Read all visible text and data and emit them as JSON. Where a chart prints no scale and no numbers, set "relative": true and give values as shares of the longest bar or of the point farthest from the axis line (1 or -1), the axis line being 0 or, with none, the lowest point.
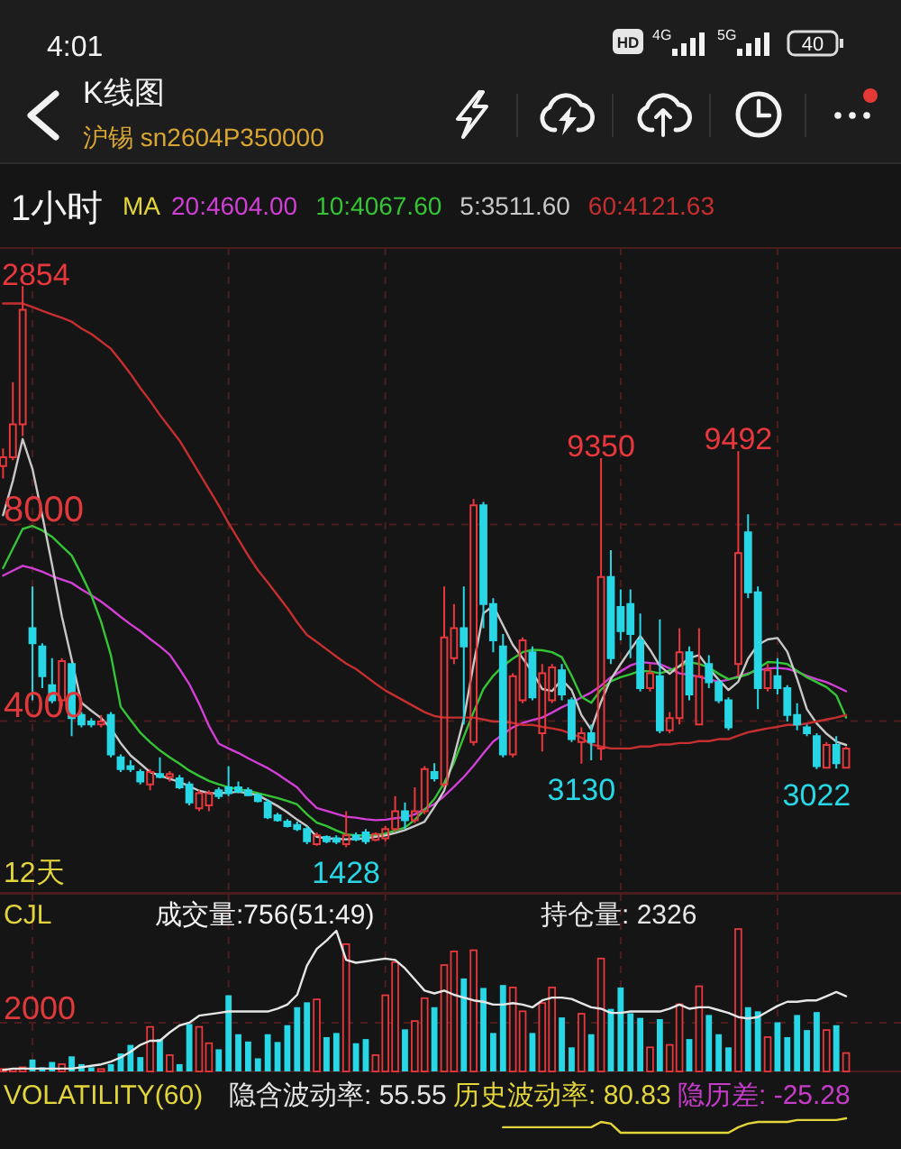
{
  "chart_data": [
    {
      "type": "candlestick",
      "title": "K线图",
      "subtitle": "沪锡 sn2604P350000",
      "legend_title": "MA",
      "legend": "top left",
      "categories": [
        null,
        null,
        null,
        null,
        null,
        null,
        null,
        null,
        null,
        null,
        null,
        null,
        null,
        null,
        null,
        null,
        null,
        null,
        null,
        null,
        null,
        null,
        null,
        null,
        null,
        null,
        null,
        null,
        null,
        null,
        null,
        null,
        null,
        null,
        null,
        null,
        null,
        null,
        null,
        null,
        null,
        null,
        null,
        null,
        null,
        null,
        null,
        null,
        null,
        null,
        null,
        null,
        null,
        null,
        null,
        null,
        null,
        null,
        null,
        null,
        null,
        null,
        null,
        null,
        null,
        null,
        null,
        null,
        null,
        null,
        null,
        null,
        null,
        null,
        null,
        null,
        null,
        null,
        null,
        null,
        null,
        null,
        null,
        null,
        null,
        null,
        null
      ],
      "ohlc": [
        [
          9190,
          9550,
          8940,
          9370
        ],
        [
          9370,
          10900,
          9310,
          10040
        ],
        [
          10040,
          12854,
          9800,
          12370
        ],
        [
          5890,
          6740,
          4420,
          5580
        ],
        [
          5520,
          5580,
          4670,
          4910
        ],
        [
          4730,
          5280,
          4360,
          4420
        ],
        [
          4420,
          5280,
          4300,
          5220
        ],
        [
          5160,
          5160,
          3690,
          4060
        ],
        [
          4120,
          4180,
          3870,
          3930
        ],
        [
          3990,
          4060,
          3870,
          3930
        ],
        [
          3930,
          4120,
          3870,
          3990
        ],
        [
          4120,
          4180,
          3260,
          3320
        ],
        [
          3260,
          3320,
          2960,
          3020
        ],
        [
          3080,
          3200,
          2960,
          3020
        ],
        [
          2960,
          3020,
          2710,
          2770
        ],
        [
          2710,
          3020,
          2590,
          2960
        ],
        [
          2920,
          3260,
          2830,
          2860
        ],
        [
          2860,
          2980,
          2770,
          2920
        ],
        [
          2830,
          2900,
          2610,
          2650
        ],
        [
          2710,
          2770,
          2280,
          2340
        ],
        [
          2220,
          2590,
          2160,
          2530
        ],
        [
          2280,
          2590,
          2160,
          2530
        ],
        [
          2590,
          2650,
          2410,
          2470
        ],
        [
          2650,
          3080,
          2470,
          2530
        ],
        [
          2650,
          2770,
          2530,
          2560
        ],
        [
          2590,
          2650,
          2470,
          2490
        ],
        [
          2490,
          2530,
          2340,
          2370
        ],
        [
          2340,
          2410,
          2000,
          2040
        ],
        [
          2080,
          2130,
          1950,
          1980
        ],
        [
          1950,
          2000,
          1830,
          1860
        ],
        [
          1880,
          1950,
          1760,
          1800
        ],
        [
          1800,
          1860,
          1490,
          1550
        ],
        [
          1490,
          1730,
          1460,
          1670
        ],
        [
          1640,
          1670,
          1510,
          1550
        ],
        [
          1610,
          1670,
          1490,
          1540
        ],
        [
          1490,
          2160,
          1428,
          1670
        ],
        [
          1670,
          1730,
          1550,
          1590
        ],
        [
          1730,
          1800,
          1490,
          1550
        ],
        [
          1580,
          1730,
          1550,
          1700
        ],
        [
          1610,
          1860,
          1550,
          1800
        ],
        [
          1800,
          2470,
          1760,
          2160
        ],
        [
          2160,
          2340,
          1800,
          1980
        ],
        [
          1980,
          2650,
          1920,
          2160
        ],
        [
          2160,
          3080,
          2100,
          3020
        ],
        [
          2960,
          3140,
          2770,
          2830
        ],
        [
          2710,
          6740,
          2650,
          5700
        ],
        [
          5280,
          6380,
          5160,
          5890
        ],
        [
          5890,
          6740,
          3930,
          5520
        ],
        [
          3570,
          8520,
          3500,
          8390
        ],
        [
          8390,
          8460,
          5890,
          6380
        ],
        [
          6380,
          6500,
          5400,
          5640
        ],
        [
          5520,
          5770,
          3260,
          3320
        ],
        [
          3320,
          4970,
          3260,
          4910
        ],
        [
          4420,
          5700,
          4360,
          5640
        ],
        [
          5400,
          5520,
          4420,
          4480
        ],
        [
          3750,
          5160,
          3380,
          4970
        ],
        [
          4420,
          5160,
          4360,
          5090
        ],
        [
          5030,
          5160,
          4420,
          4540
        ],
        [
          4420,
          4480,
          3570,
          3630
        ],
        [
          3570,
          3870,
          3130,
          3750
        ],
        [
          3750,
          3930,
          3200,
          3570
        ],
        [
          3440,
          9350,
          3200,
          6930
        ],
        [
          6930,
          7480,
          5160,
          5280
        ],
        [
          6320,
          6680,
          5640,
          5830
        ],
        [
          6380,
          6680,
          5280,
          5770
        ],
        [
          5640,
          6190,
          4600,
          4670
        ],
        [
          4670,
          5160,
          4600,
          4970
        ],
        [
          4910,
          6070,
          3750,
          3810
        ],
        [
          3810,
          4180,
          3750,
          4060
        ],
        [
          4060,
          5890,
          3930,
          5400
        ],
        [
          5400,
          5520,
          4420,
          4540
        ],
        [
          3930,
          5890,
          3930,
          4910
        ],
        [
          5160,
          5340,
          4670,
          4790
        ],
        [
          4790,
          4850,
          4360,
          4420
        ],
        [
          4420,
          4480,
          3810,
          3870
        ],
        [
          5160,
          9492,
          4910,
          7420
        ],
        [
          7840,
          8210,
          6500,
          6620
        ],
        [
          6620,
          6740,
          4240,
          4670
        ],
        [
          4670,
          5160,
          4600,
          5030
        ],
        [
          4910,
          5280,
          4540,
          4670
        ],
        [
          4670,
          4730,
          3990,
          4120
        ],
        [
          4120,
          4360,
          3810,
          3930
        ],
        [
          3870,
          3930,
          3690,
          3750
        ],
        [
          3690,
          3750,
          3022,
          3080
        ],
        [
          3050,
          3570,
          3030,
          3510
        ],
        [
          3510,
          3690,
          3030,
          3140
        ],
        [
          3050,
          3480,
          3030,
          3440
        ]
      ],
      "colors": [
        "#e8383d",
        "#e8383d",
        "#e8383d",
        "#28d7e6",
        "#28d7e6",
        "#28d7e6",
        "#e8383d",
        "#28d7e6",
        "#28d7e6",
        "#28d7e6",
        "#e8383d",
        "#28d7e6",
        "#28d7e6",
        "#28d7e6",
        "#28d7e6",
        "#e8383d",
        "#28d7e6",
        "#e8383d",
        "#28d7e6",
        "#28d7e6",
        "#e8383d",
        "#e8383d",
        "#28d7e6",
        "#28d7e6",
        "#28d7e6",
        "#28d7e6",
        "#28d7e6",
        "#28d7e6",
        "#28d7e6",
        "#28d7e6",
        "#28d7e6",
        "#28d7e6",
        "#e8383d",
        "#28d7e6",
        "#28d7e6",
        "#e8383d",
        "#28d7e6",
        "#28d7e6",
        "#e8383d",
        "#e8383d",
        "#e8383d",
        "#28d7e6",
        "#e8383d",
        "#e8383d",
        "#28d7e6",
        "#e8383d",
        "#e8383d",
        "#28d7e6",
        "#e8383d",
        "#28d7e6",
        "#28d7e6",
        "#28d7e6",
        "#e8383d",
        "#e8383d",
        "#28d7e6",
        "#e8383d",
        "#e8383d",
        "#28d7e6",
        "#28d7e6",
        "#e8383d",
        "#28d7e6",
        "#e8383d",
        "#28d7e6",
        "#28d7e6",
        "#28d7e6",
        "#28d7e6",
        "#e8383d",
        "#28d7e6",
        "#e8383d",
        "#e8383d",
        "#28d7e6",
        "#e8383d",
        "#28d7e6",
        "#28d7e6",
        "#28d7e6",
        "#e8383d",
        "#28d7e6",
        "#28d7e6",
        "#e8383d",
        "#28d7e6",
        "#28d7e6",
        "#28d7e6",
        "#28d7e6",
        "#28d7e6",
        "#e8383d",
        "#28d7e6",
        "#e8383d"
      ],
      "series": [
        {
          "type": "line",
          "name": "20:4604.00",
          "color": "#d23fd6",
          "values": [
            6960,
            7060,
            7160,
            7110,
            7040,
            6950,
            6880,
            6810,
            6680,
            6560,
            6430,
            6280,
            6120,
            5970,
            5830,
            5670,
            5520,
            5350,
            5060,
            4750,
            4350,
            3900,
            3540,
            3440,
            3350,
            3240,
            3140,
            3040,
            2920,
            2780,
            2650,
            2420,
            2230,
            2170,
            2110,
            2050,
            2030,
            2000,
            1980,
            1990,
            2020,
            2040,
            2100,
            2200,
            2310,
            2470,
            2660,
            2860,
            3090,
            3340,
            3580,
            3730,
            3870,
            3960,
            4020,
            4070,
            4170,
            4280,
            4370,
            4480,
            4580,
            4720,
            4890,
            5010,
            5130,
            5200,
            5180,
            5160,
            5070,
            4970,
            4940,
            4900,
            4850,
            4800,
            4840,
            4910,
            4970,
            5030,
            5070,
            5080,
            5060,
            5000,
            4920,
            4850,
            4790,
            4700,
            4604
          ]
        },
        {
          "type": "line",
          "name": "10:4067.60",
          "color": "#35c435",
          "values": [
            7110,
            7510,
            7910,
            7970,
            7880,
            7750,
            7560,
            7370,
            6980,
            6560,
            6020,
            5340,
            4290,
            4020,
            3760,
            3570,
            3400,
            3260,
            3130,
            2990,
            2880,
            2780,
            2710,
            2650,
            2610,
            2580,
            2530,
            2480,
            2430,
            2370,
            2300,
            2100,
            1930,
            1860,
            1770,
            1690,
            1670,
            1670,
            1670,
            1710,
            1770,
            1830,
            1990,
            2190,
            2410,
            2740,
            3150,
            3680,
            4180,
            4650,
            4920,
            5120,
            5270,
            5400,
            5450,
            5440,
            5400,
            5300,
            4920,
            4490,
            4370,
            4640,
            4810,
            4890,
            4950,
            5020,
            5010,
            4970,
            5030,
            5110,
            5200,
            5160,
            5090,
            4960,
            4850,
            4890,
            4950,
            5070,
            5200,
            5190,
            5160,
            5020,
            4890,
            4790,
            4690,
            4520,
            4067.6
          ]
        },
        {
          "type": "line",
          "name": "5:3511.60",
          "color": "#c8c8c8",
          "values": [
            8190,
            8890,
            9740,
            9130,
            8190,
            7180,
            6130,
            5250,
            4370,
            4210,
            4060,
            3850,
            3550,
            3300,
            3130,
            2960,
            2890,
            2820,
            2760,
            2670,
            2580,
            2530,
            2530,
            2540,
            2560,
            2530,
            2490,
            2380,
            2270,
            2140,
            1990,
            1860,
            1640,
            1610,
            1600,
            1590,
            1600,
            1610,
            1640,
            1670,
            1720,
            1780,
            1860,
            1950,
            2250,
            2580,
            3270,
            4040,
            5160,
            6190,
            6350,
            5950,
            5550,
            5280,
            5000,
            4650,
            4610,
            4840,
            4630,
            4120,
            3820,
            4390,
            4850,
            5160,
            5450,
            5730,
            5450,
            5120,
            4960,
            5120,
            5280,
            5340,
            5070,
            4840,
            4630,
            4800,
            5270,
            5550,
            5660,
            5690,
            5410,
            4860,
            4240,
            3950,
            3740,
            3580,
            3511.6
          ]
        },
        {
          "type": "line",
          "name": "60:4121.63",
          "color": "#c62f2f",
          "values": [
            12500,
            12500,
            12500,
            12430,
            12350,
            12280,
            12210,
            12130,
            11990,
            11880,
            11730,
            11580,
            11330,
            11070,
            10780,
            10520,
            10230,
            9970,
            9710,
            9380,
            9050,
            8720,
            8390,
            8030,
            7700,
            7370,
            7070,
            6820,
            6560,
            6300,
            6010,
            5750,
            5610,
            5460,
            5310,
            5170,
            5060,
            4910,
            4760,
            4620,
            4510,
            4400,
            4290,
            4180,
            4100,
            4070,
            4070,
            4070,
            4070,
            4030,
            3990,
            3990,
            3960,
            3920,
            3920,
            3880,
            3850,
            3810,
            3740,
            3660,
            3520,
            3480,
            3440,
            3440,
            3440,
            3480,
            3480,
            3520,
            3520,
            3550,
            3550,
            3590,
            3590,
            3630,
            3630,
            3700,
            3770,
            3810,
            3850,
            3880,
            3920,
            3920,
            3950,
            3990,
            4030,
            4070,
            4121.63
          ]
        }
      ],
      "ylim": [
        500,
        13630
      ],
      "yticks": [
        4000,
        8000
      ],
      "grid": true,
      "tick_labels": "y",
      "annotations": [
        "4:01",
        "HD",
        "4G",
        "5G",
        "40",
        "1小时",
        "12天",
        "2854",
        {
          "text": "9350",
          "y": 9350
        },
        {
          "text": "9492",
          "y": 9492
        },
        {
          "text": "1428",
          "y": 1428
        },
        {
          "text": "3130",
          "y": 3130
        },
        {
          "text": "3022",
          "y": 3022
        }
      ]
    },
    {
      "type": "bar",
      "title": "CJL",
      "categories": [
        null,
        null,
        null,
        null,
        null,
        null,
        null,
        null,
        null,
        null,
        null,
        null,
        null,
        null,
        null,
        null,
        null,
        null,
        null,
        null,
        null,
        null,
        null,
        null,
        null,
        null,
        null,
        null,
        null,
        null,
        null,
        null,
        null,
        null,
        null,
        null,
        null,
        null,
        null,
        null,
        null,
        null,
        null,
        null,
        null,
        null,
        null,
        null,
        null,
        null,
        null,
        null,
        null,
        null,
        null,
        null,
        null,
        null,
        null,
        null,
        null,
        null,
        null,
        null,
        null,
        null,
        null,
        null,
        null,
        null,
        null,
        null,
        null,
        null,
        null,
        null,
        null,
        null,
        null,
        null,
        null,
        null,
        null,
        null,
        null,
        null,
        null
      ],
      "series": [
        {
          "values": [
            100,
            100,
            170,
            490,
            170,
            390,
            300,
            620,
            300,
            170,
            100,
            300,
            740,
            1090,
            590,
            1830,
            1330,
            670,
            300,
            1950,
            1830,
            1160,
            910,
            3130,
            1530,
            1230,
            540,
            1530,
            1210,
            1900,
            2640,
            2840,
            2960,
            1410,
            1580,
            5230,
            1160,
            1330,
            670,
            3130,
            4490,
            1730,
            2070,
            3010,
            2640,
            4370,
            4930,
            3820,
            4980,
            3430,
            1580,
            3550,
            3450,
            2470,
            1580,
            2810,
            3450,
            2220,
            990,
            2370,
            1530,
            4640,
            2570,
            3450,
            2390,
            2200,
            990,
            2150,
            1090,
            2760,
            1330,
            3500,
            2320,
            1530,
            990,
            5850,
            2640,
            2470,
            1410,
            2020,
            1410,
            2320,
            1700,
            2440,
            1700,
            1900,
            756
          ],
          "colors": [
            "#e8383d",
            "#e8383d",
            "#e8383d",
            "#28d7e6",
            "#28d7e6",
            "#28d7e6",
            "#e8383d",
            "#28d7e6",
            "#28d7e6",
            "#28d7e6",
            "#e8383d",
            "#28d7e6",
            "#28d7e6",
            "#28d7e6",
            "#28d7e6",
            "#e8383d",
            "#28d7e6",
            "#e8383d",
            "#28d7e6",
            "#28d7e6",
            "#e8383d",
            "#e8383d",
            "#28d7e6",
            "#28d7e6",
            "#28d7e6",
            "#28d7e6",
            "#28d7e6",
            "#28d7e6",
            "#28d7e6",
            "#28d7e6",
            "#28d7e6",
            "#28d7e6",
            "#e8383d",
            "#28d7e6",
            "#28d7e6",
            "#e8383d",
            "#28d7e6",
            "#28d7e6",
            "#e8383d",
            "#e8383d",
            "#e8383d",
            "#28d7e6",
            "#e8383d",
            "#e8383d",
            "#28d7e6",
            "#e8383d",
            "#e8383d",
            "#28d7e6",
            "#e8383d",
            "#28d7e6",
            "#28d7e6",
            "#28d7e6",
            "#e8383d",
            "#e8383d",
            "#28d7e6",
            "#e8383d",
            "#e8383d",
            "#28d7e6",
            "#28d7e6",
            "#e8383d",
            "#28d7e6",
            "#e8383d",
            "#28d7e6",
            "#28d7e6",
            "#28d7e6",
            "#28d7e6",
            "#e8383d",
            "#28d7e6",
            "#e8383d",
            "#e8383d",
            "#28d7e6",
            "#e8383d",
            "#28d7e6",
            "#28d7e6",
            "#28d7e6",
            "#e8383d",
            "#28d7e6",
            "#28d7e6",
            "#e8383d",
            "#28d7e6",
            "#28d7e6",
            "#28d7e6",
            "#28d7e6",
            "#28d7e6",
            "#e8383d",
            "#28d7e6",
            "#e8383d"
          ]
        }
      ],
      "ylim": [
        0,
        7300
      ],
      "yticks": [
        2000
      ],
      "grid": true,
      "tick_labels": "y",
      "annotations": [
        "成交量:756(51:49)"
      ]
    },
    {
      "type": "line",
      "relative": true,
      "legend": "top",
      "categories": [
        null,
        null,
        null,
        null,
        null,
        null,
        null,
        null,
        null,
        null,
        null,
        null,
        null,
        null,
        null,
        null,
        null,
        null,
        null,
        null,
        null,
        null,
        null,
        null,
        null,
        null,
        null,
        null,
        null,
        null,
        null,
        null,
        null,
        null,
        null,
        null,
        null,
        null,
        null,
        null,
        null,
        null,
        null,
        null,
        null,
        null,
        null,
        null,
        null,
        null,
        null,
        null,
        null,
        null,
        null,
        null,
        null,
        null,
        null,
        null,
        null,
        null,
        null,
        null,
        null,
        null,
        null,
        null,
        null,
        null,
        null,
        null,
        null,
        null,
        null,
        null,
        null,
        null,
        null,
        null,
        null,
        null,
        null,
        null,
        null,
        null,
        null
      ],
      "series": [
        {
          "name": "持仓量: 2326",
          "color": "#e6e6e6",
          "values": [
            0,
            0.01,
            0.01,
            0.01,
            0.01,
            0.01,
            0.01,
            0.01,
            0.02,
            0.03,
            0.04,
            0.06,
            0.09,
            0.13,
            0.18,
            0.21,
            0.21,
            0.27,
            0.32,
            0.34,
            0.39,
            0.4,
            0.41,
            0.42,
            0.42,
            0.42,
            0.42,
            0.42,
            0.44,
            0.47,
            0.54,
            0.75,
            0.87,
            0.93,
            1,
            0.79,
            0.77,
            0.78,
            0.79,
            0.8,
            0.79,
            0.73,
            0.65,
            0.57,
            0.55,
            0.57,
            0.54,
            0.52,
            0.5,
            0.49,
            0.47,
            0.47,
            0.48,
            0.47,
            0.45,
            0.5,
            0.52,
            0.52,
            0.51,
            0.48,
            0.45,
            0.44,
            0.41,
            0.41,
            0.42,
            0.42,
            0.42,
            0.42,
            0.44,
            0.47,
            0.44,
            0.45,
            0.45,
            0.43,
            0.41,
            0.38,
            0.37,
            0.38,
            0.42,
            0.46,
            0.49,
            0.49,
            0.5,
            0.5,
            0.53,
            0.56,
            0.53
          ]
        }
      ]
    },
    {
      "type": "line",
      "title": "VOLATILITY(60)",
      "relative": true,
      "legend": "top",
      "categories": [
        null,
        null,
        null,
        null,
        null,
        null,
        null,
        null,
        null,
        null,
        null,
        null,
        null,
        null,
        null,
        null,
        null,
        null,
        null,
        null,
        null,
        null,
        null,
        null,
        null,
        null,
        null,
        null,
        null,
        null,
        null,
        null,
        null,
        null,
        null,
        null,
        null,
        null,
        null,
        null,
        null,
        null,
        null,
        null,
        null,
        null,
        null,
        null,
        null,
        null,
        null,
        null,
        null,
        null,
        null,
        null,
        null,
        null,
        null,
        null,
        null,
        null,
        null,
        null,
        null,
        null,
        null,
        null,
        null,
        null,
        null,
        null,
        null,
        null,
        null,
        null,
        null,
        null,
        null,
        null,
        null,
        null,
        null,
        null,
        null,
        null,
        null
      ],
      "series": [
        {
          "name": "隐含波动率: 55.55",
          "color": "#e6e6e6",
          "values": [
            null,
            null,
            null,
            null,
            null,
            null,
            null,
            null,
            null,
            null,
            null,
            null,
            null,
            null,
            null,
            null,
            null,
            null,
            null,
            null,
            null,
            null,
            null,
            null,
            null,
            null,
            null,
            null,
            null,
            null,
            null,
            null,
            null,
            null,
            null,
            null,
            null,
            null,
            null,
            null,
            null,
            null,
            null,
            null,
            null,
            null,
            null,
            null,
            null,
            null,
            null,
            null,
            null,
            null,
            null,
            null,
            null,
            null,
            null,
            null,
            null,
            null,
            null,
            null,
            null,
            null,
            null,
            null,
            null,
            null,
            null,
            null,
            null,
            null,
            null,
            null,
            null,
            null,
            null,
            null,
            null,
            null,
            null,
            null,
            null,
            null,
            null
          ]
        },
        {
          "name": "历史波动率: 80.83",
          "color": "#e2d53c",
          "values": [
            null,
            null,
            null,
            null,
            null,
            null,
            null,
            null,
            null,
            null,
            null,
            null,
            null,
            null,
            null,
            null,
            null,
            null,
            null,
            null,
            null,
            null,
            null,
            null,
            null,
            null,
            null,
            null,
            null,
            null,
            null,
            null,
            null,
            null,
            null,
            null,
            null,
            null,
            null,
            null,
            null,
            null,
            null,
            null,
            null,
            null,
            null,
            null,
            null,
            null,
            null,
            0.38,
            0.38,
            0.38,
            0.38,
            0.38,
            0.38,
            0.38,
            0.38,
            0.38,
            0.38,
            0.75,
            0.63,
            0,
            0,
            0,
            0,
            0,
            0,
            0,
            0,
            0,
            0,
            0,
            0,
            0.38,
            0.63,
            0.75,
            0.75,
            0.75,
            0.75,
            0.88,
            0.88,
            0.88,
            0.88,
            0.88,
            1
          ]
        },
        {
          "name": "隐历差: -25.28",
          "color": "#c63cc9",
          "values": [
            null,
            null,
            null,
            null,
            null,
            null,
            null,
            null,
            null,
            null,
            null,
            null,
            null,
            null,
            null,
            null,
            null,
            null,
            null,
            null,
            null,
            null,
            null,
            null,
            null,
            null,
            null,
            null,
            null,
            null,
            null,
            null,
            null,
            null,
            null,
            null,
            null,
            null,
            null,
            null,
            null,
            null,
            null,
            null,
            null,
            null,
            null,
            null,
            null,
            null,
            null,
            null,
            null,
            null,
            null,
            null,
            null,
            null,
            null,
            null,
            null,
            null,
            null,
            null,
            null,
            null,
            null,
            null,
            null,
            null,
            null,
            null,
            null,
            null,
            null,
            null,
            null,
            null,
            null,
            null,
            null,
            null,
            null,
            null,
            null,
            null,
            null
          ]
        }
      ]
    }
  ]
}
